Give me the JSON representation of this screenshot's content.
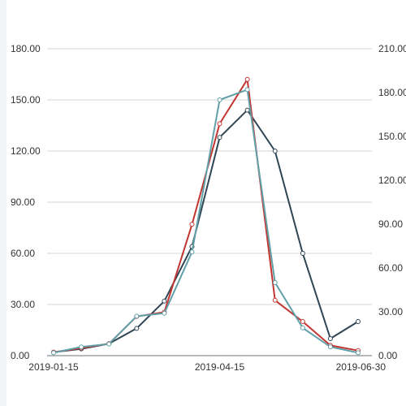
{
  "chart_data": {
    "type": "line",
    "x": [
      "2019-01-15",
      "2019-01-30",
      "2019-02-14",
      "2019-03-01",
      "2019-03-16",
      "2019-03-31",
      "2019-04-15",
      "2019-04-30",
      "2019-05-15",
      "2019-05-30",
      "2019-06-14",
      "2019-06-30"
    ],
    "x_tick_labels": [
      "2019-01-15",
      "2019-04-15",
      "2019-06-30"
    ],
    "y_left": {
      "min": 0,
      "max": 180,
      "ticks": [
        "0.00",
        "30.00",
        "60.00",
        "90.00",
        "120.00",
        "150.00",
        "180.00"
      ]
    },
    "y_right": {
      "min": 0,
      "max": 210,
      "ticks": [
        "0.00",
        "30.00",
        "60.00",
        "90.00",
        "120.00",
        "150.00",
        "180.00",
        "210.00"
      ]
    },
    "grid": true,
    "title": "",
    "xlabel": "",
    "ylabel": "",
    "series": [
      {
        "axis": "left",
        "color": "#2f4554",
        "values": [
          2,
          4,
          7,
          16,
          32,
          64,
          128,
          144,
          120,
          60,
          10,
          20
        ]
      },
      {
        "axis": "left",
        "color": "#c23531",
        "values": [
          2,
          4.5,
          7,
          23,
          25.5,
          77,
          136,
          162,
          32.5,
          20,
          6,
          3
        ]
      },
      {
        "axis": "right",
        "color": "#61a0a8",
        "values": [
          2,
          6,
          8,
          27,
          29,
          71,
          175,
          182,
          50,
          19,
          6,
          2
        ]
      }
    ]
  }
}
